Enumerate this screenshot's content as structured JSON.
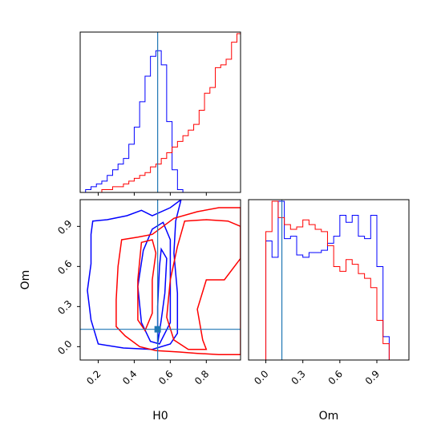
{
  "chart_data": {
    "type": "corner",
    "parameters": [
      "H0",
      "Om"
    ],
    "truth": {
      "H0": 0.53,
      "Om": 0.13
    },
    "colors": {
      "series_a": "#0000ff",
      "series_b": "#ff0000",
      "truth": "#1f77b4"
    },
    "panels": [
      {
        "id": "hist-H0",
        "type": "histogram",
        "xlim": [
          0.1,
          0.99
        ],
        "xticks": [
          0.2,
          0.4,
          0.6,
          0.8
        ],
        "series": [
          {
            "color": "#0000ff",
            "bins": [
              0.1,
              0.13,
              0.16,
              0.19,
              0.22,
              0.25,
              0.28,
              0.31,
              0.34,
              0.37,
              0.4,
              0.43,
              0.46,
              0.49,
              0.52,
              0.55,
              0.58,
              0.61,
              0.64,
              0.67,
              0.7,
              0.73,
              0.76
            ],
            "counts": [
              0,
              1,
              2,
              3,
              4,
              6,
              8,
              10,
              12,
              17,
              23,
              32,
              41,
              48,
              50,
              45,
              25,
              8,
              1,
              0,
              0,
              0
            ]
          },
          {
            "color": "#ff0000",
            "bins": [
              0.1,
              0.13,
              0.16,
              0.19,
              0.22,
              0.25,
              0.28,
              0.31,
              0.34,
              0.37,
              0.4,
              0.43,
              0.46,
              0.49,
              0.52,
              0.55,
              0.58,
              0.61,
              0.64,
              0.67,
              0.7,
              0.73,
              0.76,
              0.79,
              0.82,
              0.85,
              0.88,
              0.91,
              0.94,
              0.97,
              0.99
            ],
            "counts": [
              0,
              0,
              0,
              0,
              1,
              1,
              2,
              2,
              3,
              4,
              5,
              6,
              7,
              9,
              10,
              12,
              14,
              16,
              18,
              20,
              22,
              24,
              29,
              35,
              37,
              44,
              45,
              47,
              53,
              56
            ]
          }
        ]
      },
      {
        "id": "contour-H0-Om",
        "type": "contour",
        "xlim": [
          0.1,
          0.99
        ],
        "ylim": [
          -0.1,
          1.1
        ],
        "xticks": [
          0.2,
          0.4,
          0.6,
          0.8
        ],
        "yticks": [
          0.0,
          0.3,
          0.6,
          0.9
        ],
        "series": [
          {
            "color": "#0000ff",
            "levels": [
              [
                [
                  0.17,
                  0.94
                ],
                [
                  0.25,
                  0.95
                ],
                [
                  0.36,
                  0.98
                ],
                [
                  0.44,
                  1.02
                ],
                [
                  0.5,
                  0.98
                ],
                [
                  0.6,
                  1.04
                ],
                [
                  0.66,
                  1.1
                ],
                [
                  0.63,
                  0.94
                ],
                [
                  0.62,
                  0.7
                ],
                [
                  0.64,
                  0.4
                ],
                [
                  0.64,
                  0.1
                ],
                [
                  0.6,
                  0.02
                ],
                [
                  0.5,
                  -0.02
                ],
                [
                  0.34,
                  -0.01
                ],
                [
                  0.2,
                  0.02
                ],
                [
                  0.16,
                  0.2
                ],
                [
                  0.14,
                  0.42
                ],
                [
                  0.16,
                  0.62
                ],
                [
                  0.16,
                  0.84
                ],
                [
                  0.17,
                  0.94
                ]
              ],
              [
                [
                  0.5,
                  0.88
                ],
                [
                  0.56,
                  0.93
                ],
                [
                  0.6,
                  0.8
                ],
                [
                  0.6,
                  0.45
                ],
                [
                  0.6,
                  0.18
                ],
                [
                  0.54,
                  0.02
                ],
                [
                  0.49,
                  0.04
                ],
                [
                  0.44,
                  0.18
                ],
                [
                  0.42,
                  0.45
                ],
                [
                  0.45,
                  0.72
                ],
                [
                  0.5,
                  0.88
                ]
              ],
              [
                [
                  0.55,
                  0.73
                ],
                [
                  0.58,
                  0.66
                ],
                [
                  0.57,
                  0.4
                ],
                [
                  0.55,
                  0.2
                ],
                [
                  0.53,
                  0.02
                ],
                [
                  0.53,
                  0.3
                ],
                [
                  0.54,
                  0.6
                ],
                [
                  0.55,
                  0.73
                ]
              ]
            ]
          },
          {
            "color": "#ff0000",
            "levels": [
              [
                [
                  0.33,
                  0.8
                ],
                [
                  0.42,
                  0.82
                ],
                [
                  0.5,
                  0.84
                ],
                [
                  0.56,
                  0.9
                ],
                [
                  0.62,
                  0.96
                ],
                [
                  0.75,
                  1.01
                ],
                [
                  0.87,
                  1.04
                ],
                [
                  0.99,
                  1.04
                ],
                [
                  0.99,
                  0.72
                ],
                [
                  0.99,
                  -0.06
                ],
                [
                  0.87,
                  -0.06
                ],
                [
                  0.75,
                  -0.05
                ],
                [
                  0.65,
                  -0.04
                ],
                [
                  0.52,
                  -0.03
                ],
                [
                  0.43,
                  0.0
                ],
                [
                  0.35,
                  0.08
                ],
                [
                  0.3,
                  0.15
                ],
                [
                  0.3,
                  0.35
                ],
                [
                  0.31,
                  0.6
                ],
                [
                  0.33,
                  0.8
                ]
              ],
              [
                [
                  0.68,
                  0.94
                ],
                [
                  0.8,
                  0.95
                ],
                [
                  0.92,
                  0.94
                ],
                [
                  0.99,
                  0.9
                ],
                [
                  0.99,
                  0.66
                ],
                [
                  0.9,
                  0.5
                ],
                [
                  0.8,
                  0.5
                ],
                [
                  0.75,
                  0.28
                ],
                [
                  0.78,
                  0.05
                ],
                [
                  0.8,
                  -0.02
                ],
                [
                  0.7,
                  -0.02
                ],
                [
                  0.62,
                  0.05
                ],
                [
                  0.58,
                  0.22
                ],
                [
                  0.6,
                  0.5
                ],
                [
                  0.64,
                  0.75
                ],
                [
                  0.68,
                  0.94
                ]
              ],
              [
                [
                  0.44,
                  0.78
                ],
                [
                  0.5,
                  0.8
                ],
                [
                  0.52,
                  0.7
                ],
                [
                  0.5,
                  0.5
                ],
                [
                  0.5,
                  0.25
                ],
                [
                  0.46,
                  0.12
                ],
                [
                  0.42,
                  0.2
                ],
                [
                  0.42,
                  0.5
                ],
                [
                  0.44,
                  0.78
                ]
              ]
            ]
          }
        ]
      },
      {
        "id": "hist-Om",
        "type": "histogram",
        "xlim": [
          -0.14,
          1.16
        ],
        "xticks": [
          0.0,
          0.3,
          0.6,
          0.9
        ],
        "series": [
          {
            "color": "#0000ff",
            "bins": [
              -0.1,
              -0.05,
              0.0,
              0.05,
              0.1,
              0.15,
              0.2,
              0.25,
              0.3,
              0.35,
              0.4,
              0.45,
              0.5,
              0.55,
              0.6,
              0.65,
              0.7,
              0.75,
              0.8,
              0.85,
              0.9,
              0.95,
              1.0,
              1.05,
              1.1,
              1.15
            ],
            "counts": [
              0,
              0,
              51,
              44,
              68,
              52,
              53,
              45,
              44,
              46,
              46,
              47,
              50,
              53,
              62,
              59,
              62,
              53,
              52,
              62,
              40,
              10,
              0,
              0,
              0
            ]
          },
          {
            "color": "#ff0000",
            "bins": [
              -0.1,
              -0.05,
              0.0,
              0.05,
              0.1,
              0.15,
              0.2,
              0.25,
              0.3,
              0.35,
              0.4,
              0.45,
              0.5,
              0.55,
              0.6,
              0.65,
              0.7,
              0.75,
              0.8,
              0.85,
              0.9,
              0.95,
              1.0,
              1.05
            ],
            "counts": [
              0,
              0,
              55,
              68,
              61,
              58,
              56,
              57,
              60,
              58,
              56,
              55,
              49,
              40,
              38,
              43,
              41,
              37,
              35,
              31,
              17,
              7,
              0
            ]
          }
        ]
      }
    ],
    "xlabels": [
      "H0",
      "Om"
    ],
    "ylabels": [
      "",
      "Om"
    ]
  }
}
